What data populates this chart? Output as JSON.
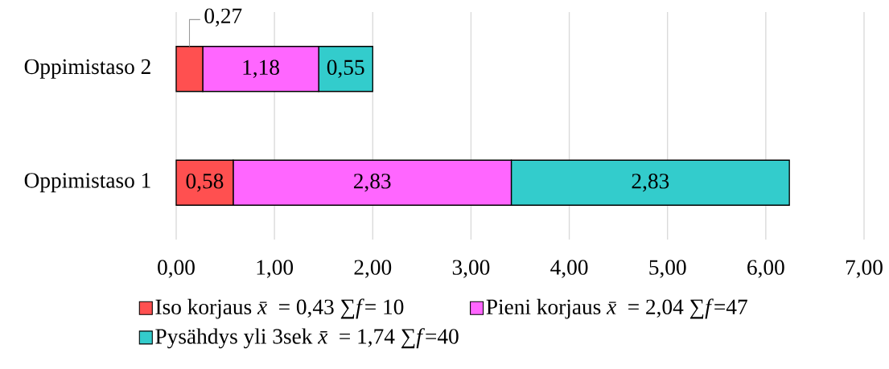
{
  "chart_data": {
    "type": "bar",
    "orientation": "horizontal",
    "stacked": true,
    "categories": [
      "Oppimistaso 2",
      "Oppimistaso 1"
    ],
    "series": [
      {
        "name": "Iso korjaus *x̄* = 0,43 ∑*f*= 10",
        "color": "#ff5050",
        "values": [
          0.27,
          0.58
        ],
        "value_labels": [
          "0,27",
          "0,58"
        ]
      },
      {
        "name": "Pieni korjaus *x̄* = 2,04 ∑*f*=47",
        "color": "#ff66ff",
        "values": [
          1.18,
          2.83
        ],
        "value_labels": [
          "1,18",
          "2,83"
        ]
      },
      {
        "name": "Pysähdys yli 3sek *x̄* = 1,74 ∑*f*=40",
        "color": "#33cccc",
        "values": [
          0.55,
          2.83
        ],
        "value_labels": [
          "0,55",
          "2,83"
        ]
      }
    ],
    "xlim": [
      0,
      7
    ],
    "xticks": [
      {
        "value": 0,
        "label": "0,00"
      },
      {
        "value": 1,
        "label": "1,00"
      },
      {
        "value": 2,
        "label": "2,00"
      },
      {
        "value": 3,
        "label": "3,00"
      },
      {
        "value": 4,
        "label": "4,00"
      },
      {
        "value": 5,
        "label": "5,00"
      },
      {
        "value": 6,
        "label": "6,00"
      },
      {
        "value": 7,
        "label": "7,00"
      }
    ],
    "grid": "x",
    "legend": "bottom"
  }
}
